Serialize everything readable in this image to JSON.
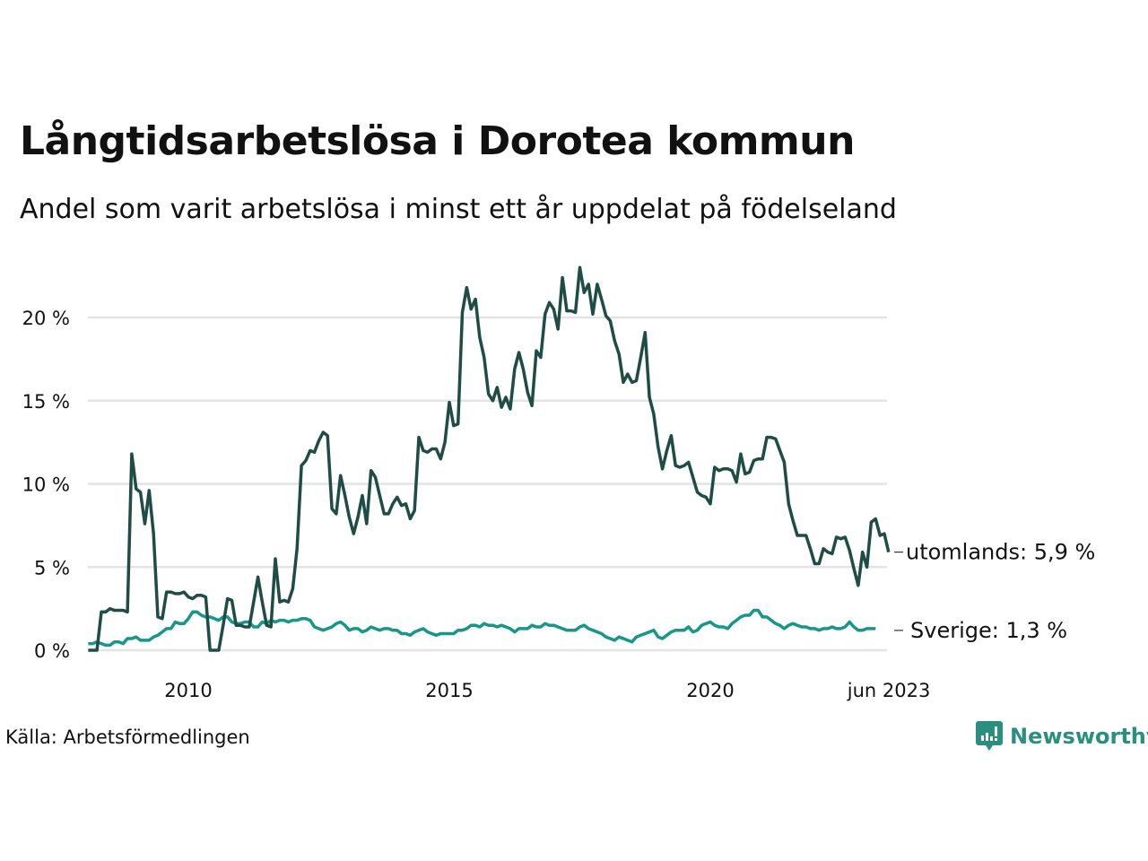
{
  "chart_data": {
    "type": "line",
    "title": "Långtidsarbetslösa i Dorotea kommun",
    "subtitle": "Andel som varit arbetslösa i minst ett år uppdelat på födelseland",
    "xlabel": "",
    "ylabel": "",
    "source": "Källa: Arbetsförmedlingen",
    "x_start": "2008-02",
    "x_end": "2023-06",
    "x_frequency": "monthly",
    "x_ticks": [
      {
        "label": "2010",
        "year": 2010.0
      },
      {
        "label": "2015",
        "year": 2015.0
      },
      {
        "label": "2020",
        "year": 2020.0
      },
      {
        "label": "jun 2023",
        "year": 2023.42
      }
    ],
    "y_ticks": [
      {
        "label": "0 %",
        "value": 0
      },
      {
        "label": "5 %",
        "value": 5
      },
      {
        "label": "10 %",
        "value": 10
      },
      {
        "label": "15 %",
        "value": 15
      },
      {
        "label": "20 %",
        "value": 20
      }
    ],
    "ylim": [
      0,
      23.5
    ],
    "grid": true,
    "legend": "end-of-line labels (right)",
    "series": [
      {
        "name": "utomlands",
        "end_label": "utomlands: 5,9 %",
        "color": "#1f4d45",
        "values": [
          0,
          0,
          0,
          2.3,
          2.3,
          2.5,
          2.4,
          2.4,
          2.4,
          2.3,
          11.8,
          9.7,
          9.5,
          7.6,
          9.6,
          7.0,
          2.0,
          1.9,
          3.5,
          3.5,
          3.4,
          3.4,
          3.5,
          3.2,
          3.1,
          3.3,
          3.3,
          3.2,
          0,
          0,
          0,
          1.5,
          3.1,
          3.0,
          1.5,
          1.5,
          1.4,
          1.4,
          2.9,
          4.4,
          2.9,
          1.5,
          1.4,
          5.5,
          2.9,
          3.0,
          2.9,
          3.7,
          6.1,
          11.1,
          11.4,
          12.0,
          11.9,
          12.6,
          13.1,
          12.9,
          8.5,
          8.2,
          10.5,
          9.3,
          8.0,
          7.0,
          8.0,
          9.3,
          7.6,
          10.8,
          10.4,
          9.3,
          8.2,
          8.2,
          8.8,
          9.2,
          8.7,
          8.8,
          7.9,
          8.4,
          12.8,
          12.0,
          11.9,
          12.1,
          12.1,
          11.5,
          12.5,
          14.9,
          13.5,
          13.6,
          20.3,
          21.8,
          20.5,
          21.1,
          18.8,
          17.6,
          15.4,
          15.0,
          15.8,
          14.6,
          15.2,
          14.5,
          16.9,
          17.9,
          16.9,
          15.5,
          14.7,
          18.0,
          17.6,
          20.2,
          20.9,
          20.5,
          19.3,
          22.4,
          20.4,
          20.4,
          20.3,
          23.0,
          21.5,
          22.0,
          20.2,
          22.0,
          21.1,
          20.1,
          19.8,
          18.6,
          17.8,
          16.1,
          16.6,
          16.1,
          16.2,
          17.6,
          19.1,
          15.2,
          14.2,
          12.2,
          10.9,
          12.0,
          12.9,
          11.1,
          11.0,
          11.1,
          11.3,
          10.4,
          9.5,
          9.3,
          9.2,
          8.8,
          11.0,
          10.8,
          10.9,
          10.9,
          10.8,
          10.1,
          11.8,
          10.6,
          10.7,
          11.4,
          11.5,
          11.5,
          12.8,
          12.8,
          12.7,
          12.0,
          11.3,
          8.8,
          7.8,
          6.9,
          6.9,
          6.9,
          6.1,
          5.2,
          5.2,
          6.1,
          5.9,
          5.8,
          6.8,
          6.7,
          6.8,
          6.0,
          4.9,
          3.9,
          5.9,
          5.0,
          7.7,
          7.9,
          6.9,
          7.0,
          5.9
        ]
      },
      {
        "name": "Sverige",
        "end_label": "Sverige: 1,3 %",
        "color": "#17968a",
        "values": [
          0.4,
          0.4,
          0.5,
          0.4,
          0.3,
          0.3,
          0.5,
          0.5,
          0.4,
          0.7,
          0.7,
          0.8,
          0.6,
          0.6,
          0.6,
          0.8,
          0.9,
          1.1,
          1.3,
          1.3,
          1.7,
          1.6,
          1.6,
          1.9,
          2.3,
          2.3,
          2.1,
          2.0,
          2.0,
          1.9,
          1.8,
          2.0,
          2.0,
          1.7,
          1.6,
          1.6,
          1.7,
          1.7,
          1.4,
          1.4,
          1.7,
          1.6,
          1.8,
          1.7,
          1.8,
          1.8,
          1.7,
          1.8,
          1.8,
          1.9,
          1.9,
          1.8,
          1.4,
          1.3,
          1.2,
          1.3,
          1.4,
          1.6,
          1.7,
          1.5,
          1.2,
          1.3,
          1.3,
          1.1,
          1.2,
          1.4,
          1.3,
          1.2,
          1.3,
          1.3,
          1.2,
          1.2,
          1.0,
          1.0,
          0.9,
          1.1,
          1.2,
          1.3,
          1.1,
          1.0,
          0.9,
          1.0,
          1.0,
          1.0,
          1.0,
          1.2,
          1.2,
          1.3,
          1.5,
          1.5,
          1.4,
          1.6,
          1.5,
          1.5,
          1.4,
          1.5,
          1.4,
          1.3,
          1.1,
          1.3,
          1.3,
          1.3,
          1.5,
          1.4,
          1.4,
          1.6,
          1.5,
          1.5,
          1.4,
          1.3,
          1.2,
          1.2,
          1.2,
          1.4,
          1.5,
          1.3,
          1.2,
          1.1,
          1.0,
          0.8,
          0.7,
          0.6,
          0.8,
          0.7,
          0.6,
          0.5,
          0.8,
          0.9,
          1.0,
          1.1,
          1.2,
          0.8,
          0.7,
          0.9,
          1.1,
          1.2,
          1.2,
          1.2,
          1.4,
          1.1,
          1.2,
          1.5,
          1.6,
          1.7,
          1.5,
          1.4,
          1.4,
          1.3,
          1.6,
          1.8,
          2.0,
          2.1,
          2.1,
          2.4,
          2.4,
          2.0,
          2.0,
          1.8,
          1.6,
          1.5,
          1.3,
          1.5,
          1.6,
          1.5,
          1.4,
          1.4,
          1.3,
          1.3,
          1.2,
          1.3,
          1.3,
          1.4,
          1.3,
          1.3,
          1.4,
          1.7,
          1.4,
          1.2,
          1.2,
          1.3,
          1.3,
          1.3
        ]
      }
    ]
  },
  "brand": {
    "name": "Newsworthy",
    "icon": "bar-chart-speech-bubble-icon",
    "color": "#2a8f7f"
  }
}
